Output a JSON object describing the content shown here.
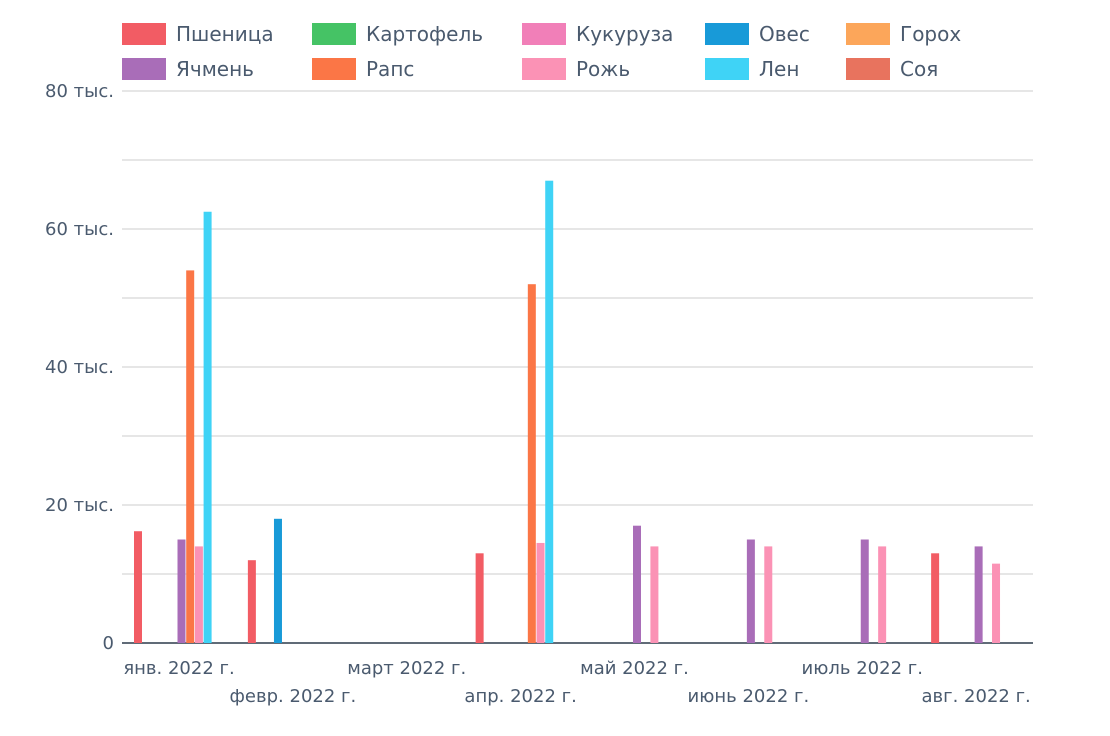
{
  "chart_data": {
    "type": "bar",
    "title": "",
    "xlabel": "",
    "ylabel": "",
    "ylim": [
      0,
      80000
    ],
    "y_ticks": [
      {
        "value": 0,
        "label": "0"
      },
      {
        "value": 20000,
        "label": "20 тыс."
      },
      {
        "value": 40000,
        "label": "40 тыс."
      },
      {
        "value": 60000,
        "label": "60 тыс."
      },
      {
        "value": 80000,
        "label": "80 тыс."
      }
    ],
    "categories": [
      "янв. 2022 г.",
      "февр. 2022 г.",
      "март 2022 г.",
      "апр. 2022 г.",
      "май 2022 г.",
      "июнь 2022 г.",
      "июль 2022 г.",
      "авг. 2022 г."
    ],
    "grid": true,
    "legend_position": "top",
    "series": [
      {
        "name": "Пшеница",
        "color": "#f25c64",
        "values": [
          16200,
          12000,
          null,
          13000,
          null,
          null,
          null,
          13000
        ]
      },
      {
        "name": "Картофель",
        "color": "#45c365",
        "values": [
          null,
          null,
          null,
          null,
          null,
          null,
          null,
          null
        ]
      },
      {
        "name": "Кукуруза",
        "color": "#f17fb8",
        "values": [
          null,
          null,
          null,
          null,
          null,
          null,
          null,
          null
        ]
      },
      {
        "name": "Овес",
        "color": "#189ad8",
        "values": [
          null,
          18000,
          null,
          null,
          null,
          null,
          null,
          null
        ]
      },
      {
        "name": "Горох",
        "color": "#fca65a",
        "values": [
          null,
          null,
          null,
          null,
          null,
          null,
          null,
          null
        ]
      },
      {
        "name": "Ячмень",
        "color": "#a96db8",
        "values": [
          15000,
          null,
          null,
          null,
          17000,
          15000,
          15000,
          14000
        ]
      },
      {
        "name": "Рапс",
        "color": "#fb7646",
        "values": [
          54000,
          null,
          null,
          52000,
          null,
          null,
          null,
          null
        ]
      },
      {
        "name": "Рожь",
        "color": "#fb92b5",
        "values": [
          14000,
          null,
          null,
          14500,
          14000,
          14000,
          14000,
          11500
        ]
      },
      {
        "name": "Лен",
        "color": "#3fd3f6",
        "values": [
          62500,
          null,
          null,
          67000,
          null,
          null,
          null,
          null
        ]
      },
      {
        "name": "Соя",
        "color": "#e8735e",
        "values": [
          null,
          null,
          null,
          null,
          null,
          null,
          null,
          null
        ]
      }
    ]
  }
}
